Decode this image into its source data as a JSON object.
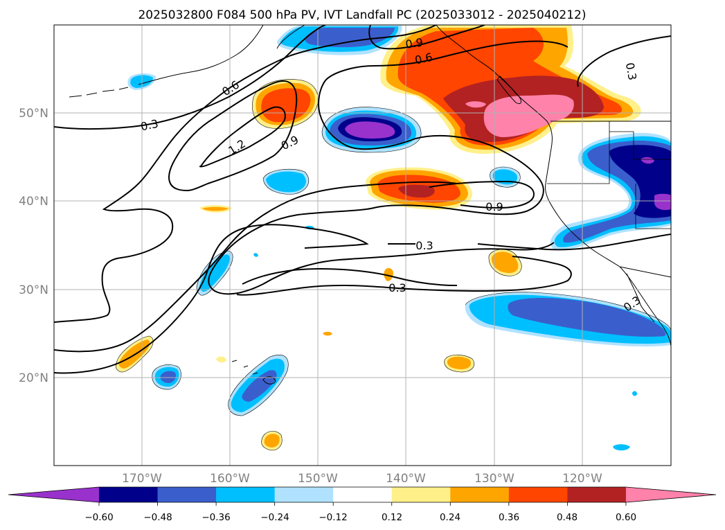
{
  "title": "2025032800 F084 500 hPa PV, IVT Landfall PC (2025033012 - 2025040212)",
  "axes": {
    "longitude_ticks": [
      "170°W",
      "160°W",
      "150°W",
      "140°W",
      "130°W",
      "120°W"
    ],
    "latitude_ticks": [
      "50°N",
      "40°N",
      "30°N",
      "20°N"
    ],
    "grid": true
  },
  "contour_labels": [
    "0.9",
    "0.6",
    "0.6",
    "0.3",
    "0.3",
    "1.2",
    "0.9",
    "0.9",
    "0.3",
    "0.3",
    "0.3"
  ],
  "colorbar": {
    "tick_labels": [
      "−0.60",
      "−0.48",
      "−0.36",
      "−0.24",
      "−0.12",
      "0.12",
      "0.24",
      "0.36",
      "0.48",
      "0.60"
    ],
    "bins": [
      {
        "color": "#9932cc"
      },
      {
        "color": "#00008b"
      },
      {
        "color": "#3a5fcd"
      },
      {
        "color": "#00bfff"
      },
      {
        "color": "#b0e2ff"
      },
      {
        "color": "#ffffff"
      },
      {
        "color": "#fff08a"
      },
      {
        "color": "#ffa500"
      },
      {
        "color": "#ff4500"
      },
      {
        "color": "#b22222"
      },
      {
        "color": "#ff82ab"
      }
    ]
  }
}
